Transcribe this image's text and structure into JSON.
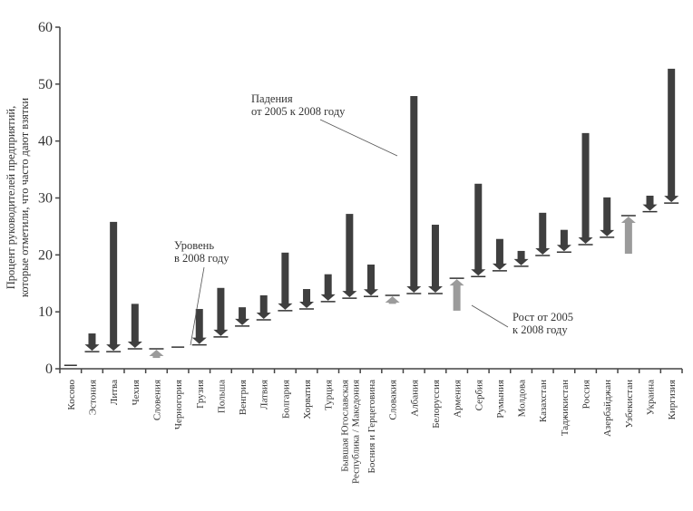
{
  "chart_data": {
    "type": "arrow-range",
    "title": "",
    "ylabel_lines": [
      "Процент руководителей предприятий,",
      "которые отметили, что часто дают взятки"
    ],
    "xlabel": "",
    "ylim": [
      0,
      60
    ],
    "yticks": [
      0,
      10,
      20,
      30,
      40,
      50,
      60
    ],
    "grid": false,
    "colors": {
      "decline": "#3f3f3f",
      "rise": "#9b9b9b",
      "axis": "#444444"
    },
    "categories": [
      {
        "label": [
          "Косово"
        ],
        "v2005": null,
        "v2008": 0.6
      },
      {
        "label": [
          "Эстония"
        ],
        "v2005": 6.2,
        "v2008": 3.0
      },
      {
        "label": [
          "Литва"
        ],
        "v2005": 25.8,
        "v2008": 3.0
      },
      {
        "label": [
          "Чехия"
        ],
        "v2005": 11.4,
        "v2008": 3.5
      },
      {
        "label": [
          "Словения"
        ],
        "v2005": 1.9,
        "v2008": 3.5
      },
      {
        "label": [
          "Черногория"
        ],
        "v2005": null,
        "v2008": 3.8
      },
      {
        "label": [
          "Грузия"
        ],
        "v2005": 10.5,
        "v2008": 4.2
      },
      {
        "label": [
          "Польша"
        ],
        "v2005": 14.2,
        "v2008": 5.6
      },
      {
        "label": [
          "Венгрия"
        ],
        "v2005": 10.8,
        "v2008": 7.5
      },
      {
        "label": [
          "Латвия"
        ],
        "v2005": 12.9,
        "v2008": 8.6
      },
      {
        "label": [
          "Болгария"
        ],
        "v2005": 20.4,
        "v2008": 10.2
      },
      {
        "label": [
          "Хорватия"
        ],
        "v2005": 14.0,
        "v2008": 10.5
      },
      {
        "label": [
          "Турция"
        ],
        "v2005": 16.6,
        "v2008": 11.8
      },
      {
        "label": [
          "Бывшая Югославская",
          "Республика / Македония"
        ],
        "v2005": 27.2,
        "v2008": 12.4
      },
      {
        "label": [
          "Босния и Герцеговина"
        ],
        "v2005": 18.3,
        "v2008": 12.7
      },
      {
        "label": [
          "Словакия"
        ],
        "v2005": 11.4,
        "v2008": 12.9
      },
      {
        "label": [
          "Албания"
        ],
        "v2005": 47.9,
        "v2008": 13.2
      },
      {
        "label": [
          "Белоруссия"
        ],
        "v2005": 25.3,
        "v2008": 13.2
      },
      {
        "label": [
          "Армения"
        ],
        "v2005": 10.2,
        "v2008": 15.9
      },
      {
        "label": [
          "Сербия"
        ],
        "v2005": 32.5,
        "v2008": 16.2
      },
      {
        "label": [
          "Румыния"
        ],
        "v2005": 22.8,
        "v2008": 17.2
      },
      {
        "label": [
          "Молдова"
        ],
        "v2005": 20.7,
        "v2008": 18.0
      },
      {
        "label": [
          "Казахстан"
        ],
        "v2005": 27.4,
        "v2008": 19.9
      },
      {
        "label": [
          "Таджикистан"
        ],
        "v2005": 24.4,
        "v2008": 20.5
      },
      {
        "label": [
          "Россия"
        ],
        "v2005": 41.4,
        "v2008": 21.8
      },
      {
        "label": [
          "Азербайджан"
        ],
        "v2005": 30.1,
        "v2008": 23.1
      },
      {
        "label": [
          "Узбекистан"
        ],
        "v2005": 20.2,
        "v2008": 26.9
      },
      {
        "label": [
          "Украина"
        ],
        "v2005": 30.4,
        "v2008": 27.6
      },
      {
        "label": [
          "Киргизия"
        ],
        "v2005": 52.7,
        "v2008": 29.1
      }
    ],
    "annotations": {
      "decline": [
        "Падения",
        "от 2005 к 2008 году"
      ],
      "level": [
        "Уровень",
        "в 2008 году"
      ],
      "rise": [
        "Рост от 2005",
        "к 2008 году"
      ]
    }
  }
}
